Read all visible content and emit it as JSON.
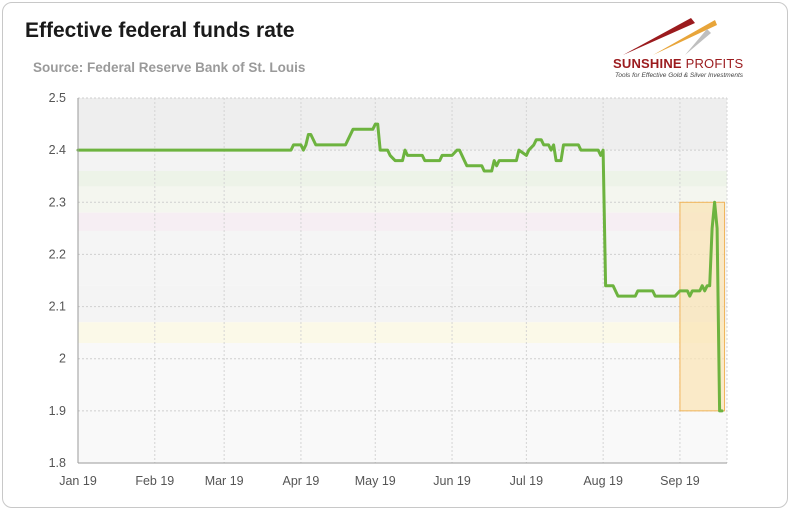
{
  "header": {
    "title": "Effective federal funds rate",
    "subtitle": "Source: Federal Reserve Bank of St. Louis"
  },
  "logo": {
    "name_bold": "SUNSHINE",
    "name_light": " PROFITS",
    "tagline": "Tools for Effective Gold & Silver Investments",
    "colors": {
      "red": "#9b1b1e",
      "gold": "#e8a53a"
    }
  },
  "chart_data": {
    "type": "line",
    "title": "Effective federal funds rate",
    "xlabel": "",
    "ylabel": "",
    "ylim": [
      1.8,
      2.5
    ],
    "yticks": [
      "1.8",
      "1.9",
      "2",
      "2.1",
      "2.2",
      "2.3",
      "2.4",
      "2.5"
    ],
    "xticks": [
      "Jan 19",
      "Feb 19",
      "Mar 19",
      "Apr 19",
      "May 19",
      "Jun 19",
      "Jul 19",
      "Aug 19",
      "Sep 19"
    ],
    "grid": true,
    "line_color": "#6db33f",
    "highlight": {
      "x_from": "Sep 19",
      "x_to": "2019-09-19",
      "y_from": 1.9,
      "y_to": 2.3,
      "fill": "#f9e4b7",
      "stroke": "#f0b45a"
    },
    "series": [
      {
        "name": "",
        "points": [
          [
            "2019-01-01",
            2.4
          ],
          [
            "2019-03-28",
            2.4
          ],
          [
            "2019-03-29",
            2.41
          ],
          [
            "2019-04-01",
            2.41
          ],
          [
            "2019-04-02",
            2.4
          ],
          [
            "2019-04-03",
            2.41
          ],
          [
            "2019-04-04",
            2.43
          ],
          [
            "2019-04-05",
            2.43
          ],
          [
            "2019-04-07",
            2.41
          ],
          [
            "2019-04-19",
            2.41
          ],
          [
            "2019-04-20",
            2.42
          ],
          [
            "2019-04-22",
            2.44
          ],
          [
            "2019-04-30",
            2.44
          ],
          [
            "2019-05-01",
            2.45
          ],
          [
            "2019-05-02",
            2.45
          ],
          [
            "2019-05-03",
            2.4
          ],
          [
            "2019-05-06",
            2.4
          ],
          [
            "2019-05-07",
            2.39
          ],
          [
            "2019-05-09",
            2.38
          ],
          [
            "2019-05-12",
            2.38
          ],
          [
            "2019-05-13",
            2.4
          ],
          [
            "2019-05-14",
            2.39
          ],
          [
            "2019-05-20",
            2.39
          ],
          [
            "2019-05-21",
            2.38
          ],
          [
            "2019-05-27",
            2.38
          ],
          [
            "2019-05-28",
            2.39
          ],
          [
            "2019-06-01",
            2.39
          ],
          [
            "2019-06-03",
            2.4
          ],
          [
            "2019-06-04",
            2.4
          ],
          [
            "2019-06-06",
            2.38
          ],
          [
            "2019-06-07",
            2.37
          ],
          [
            "2019-06-13",
            2.37
          ],
          [
            "2019-06-14",
            2.36
          ],
          [
            "2019-06-17",
            2.36
          ],
          [
            "2019-06-18",
            2.38
          ],
          [
            "2019-06-19",
            2.37
          ],
          [
            "2019-06-20",
            2.38
          ],
          [
            "2019-06-27",
            2.38
          ],
          [
            "2019-06-28",
            2.4
          ],
          [
            "2019-07-01",
            2.39
          ],
          [
            "2019-07-02",
            2.4
          ],
          [
            "2019-07-04",
            2.41
          ],
          [
            "2019-07-05",
            2.42
          ],
          [
            "2019-07-07",
            2.42
          ],
          [
            "2019-07-08",
            2.41
          ],
          [
            "2019-07-10",
            2.41
          ],
          [
            "2019-07-11",
            2.4
          ],
          [
            "2019-07-12",
            2.41
          ],
          [
            "2019-07-13",
            2.38
          ],
          [
            "2019-07-15",
            2.38
          ],
          [
            "2019-07-16",
            2.41
          ],
          [
            "2019-07-22",
            2.41
          ],
          [
            "2019-07-23",
            2.4
          ],
          [
            "2019-07-30",
            2.4
          ],
          [
            "2019-07-31",
            2.39
          ],
          [
            "2019-08-01",
            2.4
          ],
          [
            "2019-08-02",
            2.14
          ],
          [
            "2019-08-05",
            2.14
          ],
          [
            "2019-08-06",
            2.13
          ],
          [
            "2019-08-07",
            2.12
          ],
          [
            "2019-08-14",
            2.12
          ],
          [
            "2019-08-15",
            2.13
          ],
          [
            "2019-08-21",
            2.13
          ],
          [
            "2019-08-22",
            2.12
          ],
          [
            "2019-08-30",
            2.12
          ],
          [
            "2019-09-01",
            2.13
          ],
          [
            "2019-09-04",
            2.13
          ],
          [
            "2019-09-05",
            2.12
          ],
          [
            "2019-09-06",
            2.13
          ],
          [
            "2019-09-09",
            2.13
          ],
          [
            "2019-09-10",
            2.14
          ],
          [
            "2019-09-11",
            2.13
          ],
          [
            "2019-09-12",
            2.14
          ],
          [
            "2019-09-13",
            2.14
          ],
          [
            "2019-09-14",
            2.25
          ],
          [
            "2019-09-15",
            2.3
          ],
          [
            "2019-09-16",
            2.25
          ],
          [
            "2019-09-17",
            1.9
          ],
          [
            "2019-09-18",
            1.9
          ]
        ]
      }
    ]
  }
}
